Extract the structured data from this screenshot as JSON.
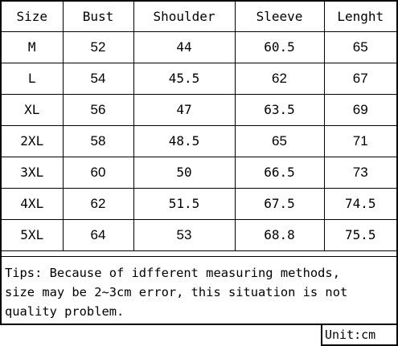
{
  "table": {
    "headers": [
      "Size",
      "Bust",
      "Shoulder",
      "Sleeve",
      "Lenght"
    ],
    "rows": [
      [
        "M",
        "52",
        "44",
        "60.5",
        "65"
      ],
      [
        "L",
        "54",
        "45.5",
        "62",
        "67"
      ],
      [
        "XL",
        "56",
        "47",
        "63.5",
        "69"
      ],
      [
        "2XL",
        "58",
        "48.5",
        "65",
        "71"
      ],
      [
        "3XL",
        "60",
        "50",
        "66.5",
        "73"
      ],
      [
        "4XL",
        "62",
        "51.5",
        "67.5",
        "74.5"
      ],
      [
        "5XL",
        "64",
        "53",
        "68.8",
        "75.5"
      ]
    ]
  },
  "tips": {
    "line1": "Tips: Because of idfferent measuring methods,",
    "line2": "size may be 2~3cm error, this situation is not",
    "line3": "quality problem."
  },
  "unit": "Unit:cm"
}
